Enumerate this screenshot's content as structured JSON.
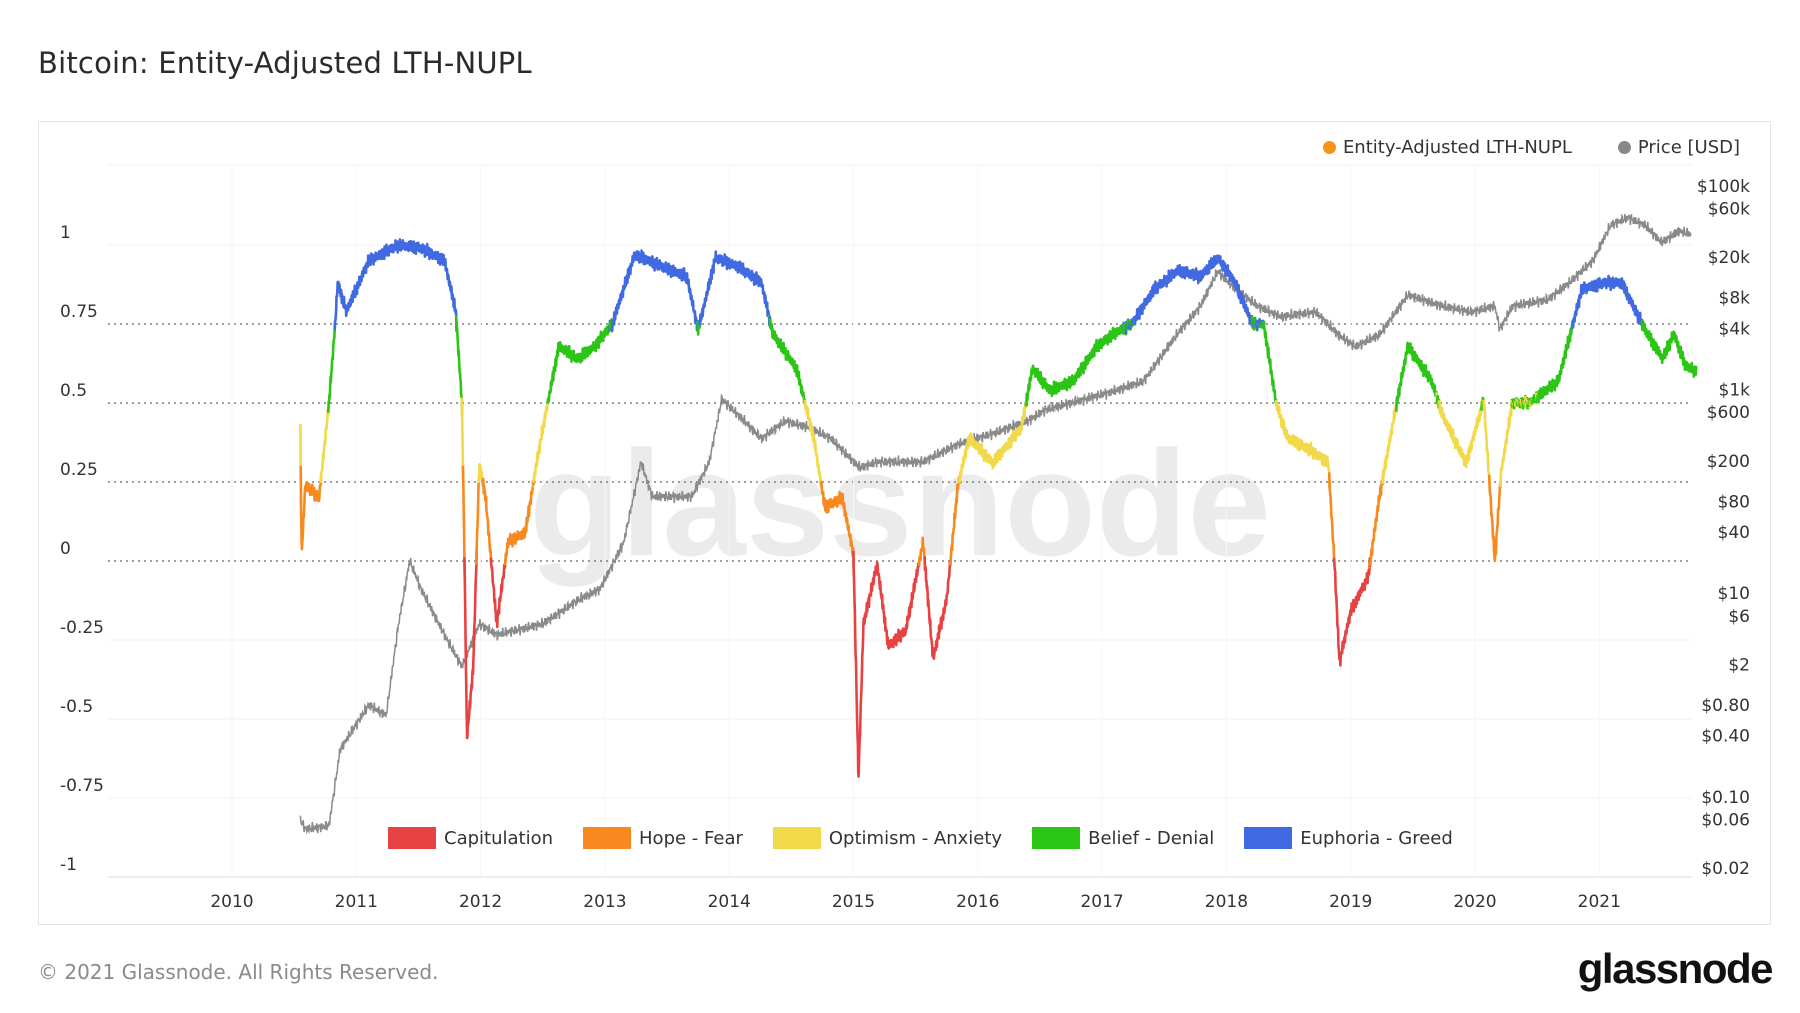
{
  "title": "Bitcoin: Entity-Adjusted LTH-NUPL",
  "footer": {
    "copyright": "© 2021 Glassnode. All Rights Reserved.",
    "logo": "glassnode"
  },
  "watermark": "glassnode",
  "chart_data": {
    "type": "line",
    "title": "Bitcoin: Entity-Adjusted LTH-NUPL",
    "legend_position": "top-right",
    "series_legend": [
      {
        "name": "Entity-Adjusted LTH-NUPL",
        "color": "#f7931a"
      },
      {
        "name": "Price [USD]",
        "color": "#888888"
      }
    ],
    "zones": [
      {
        "name": "Capitulation",
        "color": "#e84142",
        "range": [
          -1,
          0
        ]
      },
      {
        "name": "Hope - Fear",
        "color": "#f7891e",
        "range": [
          0,
          0.25
        ]
      },
      {
        "name": "Optimism - Anxiety",
        "color": "#f2d94a",
        "range": [
          0.25,
          0.5
        ]
      },
      {
        "name": "Belief - Denial",
        "color": "#2bc516",
        "range": [
          0.5,
          0.75
        ]
      },
      {
        "name": "Euphoria - Greed",
        "color": "#4169e1",
        "range": [
          0.75,
          1.25
        ]
      }
    ],
    "x_ticks": [
      "2010",
      "2011",
      "2012",
      "2013",
      "2014",
      "2015",
      "2016",
      "2017",
      "2018",
      "2019",
      "2020",
      "2021"
    ],
    "xlim": [
      2009.0,
      2021.75
    ],
    "y_left": {
      "ticks": [
        "1",
        "0.75",
        "0.5",
        "0.25",
        "0",
        "-0.25",
        "-0.5",
        "-0.75",
        "-1"
      ],
      "values": [
        1,
        0.75,
        0.5,
        0.25,
        0,
        -0.25,
        -0.5,
        -0.75,
        -1
      ],
      "ylim": [
        -1,
        1.25
      ]
    },
    "y_right": {
      "scale": "log",
      "ticks": [
        "$100k",
        "$60k",
        "$20k",
        "$8k",
        "$4k",
        "$1k",
        "$600",
        "$200",
        "$80",
        "$40",
        "$10",
        "$6",
        "$2",
        "$0.80",
        "$0.40",
        "$0.10",
        "$0.06",
        "$0.02"
      ],
      "values": [
        100000,
        60000,
        20000,
        8000,
        4000,
        1000,
        600,
        200,
        80,
        40,
        10,
        6,
        2,
        0.8,
        0.4,
        0.1,
        0.06,
        0.02
      ],
      "ylim": [
        0.02,
        100000
      ]
    },
    "nupl": {
      "x": [
        2010.55,
        2010.56,
        2010.59,
        2010.7,
        2010.78,
        2010.83,
        2010.85,
        2010.92,
        2011.1,
        2011.34,
        2011.52,
        2011.71,
        2011.8,
        2011.85,
        2011.87,
        2011.89,
        2011.94,
        2011.99,
        2012.04,
        2012.13,
        2012.22,
        2012.36,
        2012.45,
        2012.54,
        2012.63,
        2012.78,
        2012.92,
        2013.06,
        2013.24,
        2013.47,
        2013.66,
        2013.75,
        2013.89,
        2014.08,
        2014.26,
        2014.35,
        2014.54,
        2014.68,
        2014.77,
        2014.91,
        2015.0,
        2015.04,
        2015.08,
        2015.19,
        2015.28,
        2015.42,
        2015.56,
        2015.64,
        2015.75,
        2015.84,
        2015.93,
        2016.12,
        2016.35,
        2016.44,
        2016.58,
        2016.77,
        2016.96,
        2017.1,
        2017.24,
        2017.42,
        2017.61,
        2017.79,
        2017.93,
        2018.07,
        2018.21,
        2018.3,
        2018.4,
        2018.49,
        2018.68,
        2018.82,
        2018.87,
        2018.91,
        2019.0,
        2019.14,
        2019.23,
        2019.37,
        2019.46,
        2019.65,
        2019.74,
        2019.93,
        2020.07,
        2020.16,
        2020.21,
        2020.3,
        2020.44,
        2020.67,
        2020.86,
        2021.04,
        2021.18,
        2021.37,
        2021.51,
        2021.6,
        2021.69,
        2021.78
      ],
      "y": [
        0.42,
        0.02,
        0.24,
        0.2,
        0.5,
        0.75,
        0.88,
        0.79,
        0.95,
        1.0,
        0.99,
        0.95,
        0.79,
        0.5,
        0.02,
        -0.56,
        -0.34,
        0.31,
        0.2,
        -0.2,
        0.06,
        0.09,
        0.31,
        0.5,
        0.68,
        0.64,
        0.68,
        0.75,
        0.97,
        0.93,
        0.9,
        0.73,
        0.96,
        0.93,
        0.88,
        0.72,
        0.61,
        0.39,
        0.17,
        0.2,
        0.02,
        -0.69,
        -0.2,
        -0.01,
        -0.27,
        -0.22,
        0.06,
        -0.31,
        -0.12,
        0.24,
        0.39,
        0.31,
        0.42,
        0.61,
        0.54,
        0.57,
        0.68,
        0.72,
        0.75,
        0.86,
        0.92,
        0.9,
        0.96,
        0.88,
        0.75,
        0.75,
        0.5,
        0.39,
        0.35,
        0.31,
        -0.01,
        -0.32,
        -0.16,
        -0.05,
        0.2,
        0.5,
        0.68,
        0.57,
        0.46,
        0.31,
        0.51,
        0.0,
        0.28,
        0.5,
        0.5,
        0.57,
        0.86,
        0.88,
        0.88,
        0.73,
        0.64,
        0.72,
        0.62,
        0.6
      ]
    },
    "price": {
      "x": [
        2010.55,
        2010.59,
        2010.78,
        2010.87,
        2011.1,
        2011.24,
        2011.34,
        2011.43,
        2011.52,
        2011.71,
        2011.85,
        2011.99,
        2012.13,
        2012.5,
        2012.78,
        2012.96,
        2013.15,
        2013.29,
        2013.38,
        2013.7,
        2013.84,
        2013.94,
        2014.08,
        2014.26,
        2014.45,
        2014.63,
        2014.82,
        2015.05,
        2015.19,
        2015.56,
        2015.84,
        2016.12,
        2016.4,
        2016.54,
        2017.05,
        2017.33,
        2017.6,
        2017.79,
        2017.93,
        2018.07,
        2018.25,
        2018.44,
        2018.72,
        2018.9,
        2019.04,
        2019.23,
        2019.46,
        2019.74,
        2019.97,
        2020.16,
        2020.2,
        2020.3,
        2020.58,
        2020.76,
        2020.95,
        2021.09,
        2021.23,
        2021.37,
        2021.5,
        2021.64,
        2021.74
      ],
      "y": [
        0.06,
        0.048,
        0.052,
        0.29,
        0.8,
        0.63,
        5,
        21,
        11,
        3.9,
        1.9,
        5,
        3.9,
        5,
        8.5,
        11,
        31,
        195,
        89,
        89,
        195,
        810,
        550,
        330,
        490,
        430,
        330,
        170,
        195,
        195,
        290,
        370,
        490,
        630,
        930,
        1200,
        3450,
        6600,
        14500,
        9800,
        6600,
        5200,
        5800,
        3450,
        2650,
        3450,
        8500,
        6600,
        5800,
        6600,
        3900,
        6600,
        7600,
        11200,
        18700,
        41000,
        49000,
        41000,
        28000,
        36000,
        33500
      ]
    }
  }
}
